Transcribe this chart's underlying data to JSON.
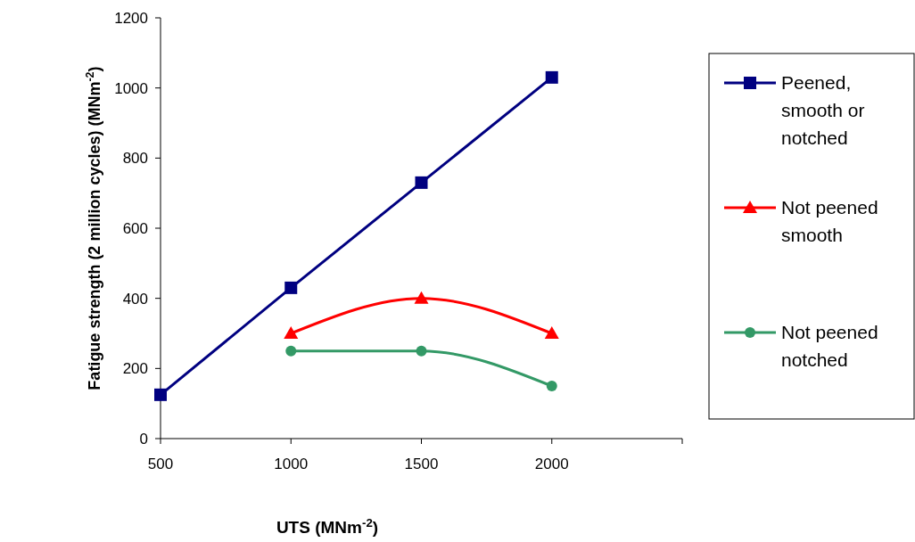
{
  "chart_data": {
    "type": "line",
    "xlabel": "UTS (MNm$^{-2}$)",
    "ylabel": "Fatigue strength (2 million cycles) (MNm$^{-2}$)",
    "xlim": [
      500,
      2500
    ],
    "xticks": [
      500,
      1000,
      1500,
      2000,
      {
        "value": 2500,
        "label": null
      }
    ],
    "ylim": [
      0,
      1200
    ],
    "yticks": [
      0,
      200,
      400,
      600,
      800,
      1000,
      1200
    ],
    "grid": false,
    "legend": "right",
    "series": [
      {
        "name": "Peened, smooth or notched",
        "color": "#000080",
        "marker": "square",
        "x": [
          500,
          1000,
          1500,
          2000
        ],
        "values": [
          125,
          430,
          730,
          1030
        ]
      },
      {
        "name": "Not peened smooth",
        "color": "#ff0000",
        "marker": "triangle",
        "x": [
          1000,
          1500,
          2000
        ],
        "values": [
          300,
          400,
          300
        ]
      },
      {
        "name": "Not peened notched",
        "color": "#339966",
        "marker": "circle",
        "x": [
          1000,
          1500,
          2000
        ],
        "values": [
          250,
          250,
          150
        ]
      }
    ]
  }
}
